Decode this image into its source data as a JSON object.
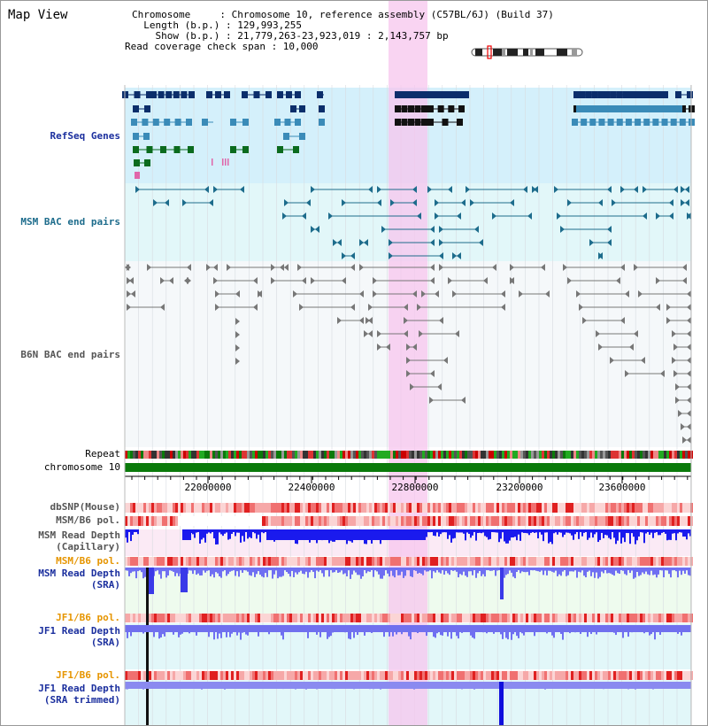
{
  "title": "Map View",
  "info": {
    "chromosome": "Chromosome     : Chromosome 10, reference assembly (C57BL/6J) (Build 37)",
    "length": "  Length (b.p.) : 129,993,255",
    "show": "    Show (b.p.) : 21,779,263-23,923,019 : 2,143,757 bp",
    "coverage": "Read coverage check span : 10,000"
  },
  "tracks": {
    "refseq": "RefSeq Genes",
    "msm_bac": "MSM BAC end pairs",
    "b6n_bac": "B6N BAC end pairs",
    "repeat": "Repeat",
    "chromosome": "chromosome 10",
    "dbsnp": "dbSNP(Mouse)",
    "msm_b6_pol": "MSM/B6 pol.",
    "msm_depth_cap_1": "MSM Read Depth",
    "msm_depth_cap_2": "(Capillary)",
    "msm_b6_pol_2": "MSM/B6 pol.",
    "msm_depth_sra_1": "MSM Read Depth",
    "msm_depth_sra_2": "(SRA)",
    "jf1_b6_pol": "JF1/B6 pol.",
    "jf1_depth_sra_1": "JF1 Read Depth",
    "jf1_depth_sra_2": "(SRA)",
    "jf1_b6_pol_2": "JF1/B6 pol.",
    "jf1_depth_trim_1": "JF1 Read Depth",
    "jf1_depth_trim_2": "(SRA trimmed)"
  },
  "axis": {
    "ticks": [
      "22000000",
      "22400000",
      "22800000",
      "23200000",
      "23600000"
    ]
  },
  "colors": {
    "highlight": "#f7c6ee",
    "refseq_bg": "#d4f0fb",
    "bac_bg": "#e2f7f9",
    "navy": "#0b2e6b",
    "steel": "#3a8bb8",
    "green": "#0b6b1e",
    "chrom": "#0a7a0a",
    "depth_blue": "#1a1aee",
    "depth_light": "#6f6ff2"
  }
}
